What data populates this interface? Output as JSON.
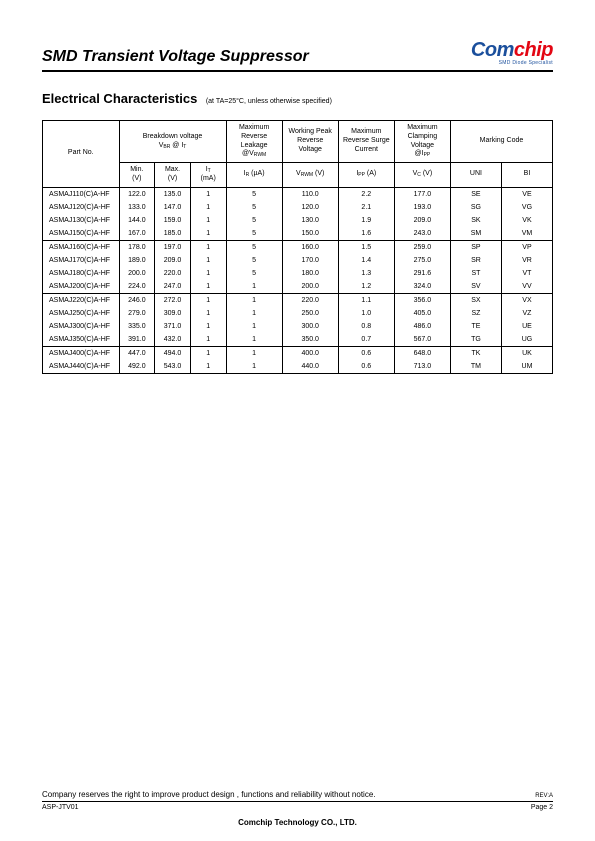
{
  "header": {
    "title": "SMD Transient Voltage Suppressor",
    "logo_main_1": "Com",
    "logo_main_2": "chip",
    "logo_sub": "SMD Diode Specialist"
  },
  "section": {
    "title": "Electrical Characteristics",
    "subtitle": "(at TA=25°C, unless otherwise specified)"
  },
  "columns": {
    "part": "Part No.",
    "breakdown": "Breakdown voltage",
    "breakdown_sub": "VBR @ IT",
    "min": "Min.",
    "min_unit": "(V)",
    "max": "Max.",
    "max_unit": "(V)",
    "it": "IT",
    "it_unit": "(mA)",
    "leakage": "Maximum Reverse Leakage",
    "leakage_sub": "@VRWM",
    "leakage_unit": "IR (µA)",
    "working": "Working Peak Reverse Voltage",
    "working_unit": "VRWM (V)",
    "surge": "Maximum Reverse Surge",
    "surge_sub": "Current",
    "surge_unit": "IPP (A)",
    "clamp": "Maximum Clamping Voltage",
    "clamp_sub": "@IPP",
    "clamp_unit": "VC (V)",
    "marking": "Marking Code",
    "uni": "UNI",
    "bi": "BI"
  },
  "groups": [
    {
      "rows": [
        {
          "part": "ASMAJ110(C)A-HF",
          "min": "122.0",
          "max": "135.0",
          "it": "1",
          "ir": "5",
          "vrwm": "110.0",
          "ipp": "2.2",
          "vc": "177.0",
          "uni": "SE",
          "bi": "VE"
        },
        {
          "part": "ASMAJ120(C)A-HF",
          "min": "133.0",
          "max": "147.0",
          "it": "1",
          "ir": "5",
          "vrwm": "120.0",
          "ipp": "2.1",
          "vc": "193.0",
          "uni": "SG",
          "bi": "VG"
        },
        {
          "part": "ASMAJ130(C)A-HF",
          "min": "144.0",
          "max": "159.0",
          "it": "1",
          "ir": "5",
          "vrwm": "130.0",
          "ipp": "1.9",
          "vc": "209.0",
          "uni": "SK",
          "bi": "VK"
        },
        {
          "part": "ASMAJ150(C)A-HF",
          "min": "167.0",
          "max": "185.0",
          "it": "1",
          "ir": "5",
          "vrwm": "150.0",
          "ipp": "1.6",
          "vc": "243.0",
          "uni": "SM",
          "bi": "VM"
        }
      ]
    },
    {
      "rows": [
        {
          "part": "ASMAJ160(C)A-HF",
          "min": "178.0",
          "max": "197.0",
          "it": "1",
          "ir": "5",
          "vrwm": "160.0",
          "ipp": "1.5",
          "vc": "259.0",
          "uni": "SP",
          "bi": "VP"
        },
        {
          "part": "ASMAJ170(C)A-HF",
          "min": "189.0",
          "max": "209.0",
          "it": "1",
          "ir": "5",
          "vrwm": "170.0",
          "ipp": "1.4",
          "vc": "275.0",
          "uni": "SR",
          "bi": "VR"
        },
        {
          "part": "ASMAJ180(C)A-HF",
          "min": "200.0",
          "max": "220.0",
          "it": "1",
          "ir": "5",
          "vrwm": "180.0",
          "ipp": "1.3",
          "vc": "291.6",
          "uni": "ST",
          "bi": "VT"
        },
        {
          "part": "ASMAJ200(C)A-HF",
          "min": "224.0",
          "max": "247.0",
          "it": "1",
          "ir": "1",
          "vrwm": "200.0",
          "ipp": "1.2",
          "vc": "324.0",
          "uni": "SV",
          "bi": "VV"
        }
      ]
    },
    {
      "rows": [
        {
          "part": "ASMAJ220(C)A-HF",
          "min": "246.0",
          "max": "272.0",
          "it": "1",
          "ir": "1",
          "vrwm": "220.0",
          "ipp": "1.1",
          "vc": "356.0",
          "uni": "SX",
          "bi": "VX"
        },
        {
          "part": "ASMAJ250(C)A-HF",
          "min": "279.0",
          "max": "309.0",
          "it": "1",
          "ir": "1",
          "vrwm": "250.0",
          "ipp": "1.0",
          "vc": "405.0",
          "uni": "SZ",
          "bi": "VZ"
        },
        {
          "part": "ASMAJ300(C)A-HF",
          "min": "335.0",
          "max": "371.0",
          "it": "1",
          "ir": "1",
          "vrwm": "300.0",
          "ipp": "0.8",
          "vc": "486.0",
          "uni": "TE",
          "bi": "UE"
        },
        {
          "part": "ASMAJ350(C)A-HF",
          "min": "391.0",
          "max": "432.0",
          "it": "1",
          "ir": "1",
          "vrwm": "350.0",
          "ipp": "0.7",
          "vc": "567.0",
          "uni": "TG",
          "bi": "UG"
        }
      ]
    },
    {
      "rows": [
        {
          "part": "ASMAJ400(C)A-HF",
          "min": "447.0",
          "max": "494.0",
          "it": "1",
          "ir": "1",
          "vrwm": "400.0",
          "ipp": "0.6",
          "vc": "648.0",
          "uni": "TK",
          "bi": "UK"
        },
        {
          "part": "ASMAJ440(C)A-HF",
          "min": "492.0",
          "max": "543.0",
          "it": "1",
          "ir": "1",
          "vrwm": "440.0",
          "ipp": "0.6",
          "vc": "713.0",
          "uni": "TM",
          "bi": "UM"
        }
      ]
    }
  ],
  "footer": {
    "notice": "Company reserves the right to improve product design , functions and reliability without notice.",
    "rev": "REV:A",
    "doc": "ASP-JTV01",
    "page": "Page 2",
    "company": "Comchip Technology CO., LTD."
  }
}
